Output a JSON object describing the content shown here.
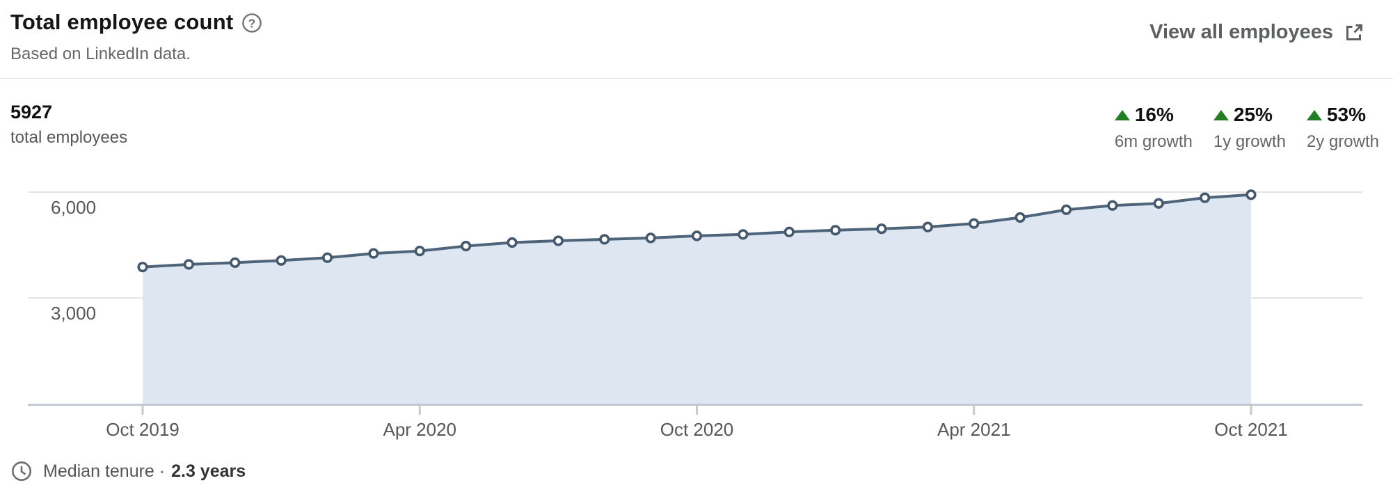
{
  "header": {
    "title": "Total employee count",
    "help_icon": "question-mark-circle-icon",
    "subtitle": "Based on LinkedIn data.",
    "view_all_label": "View all employees",
    "view_all_icon": "external-link-icon"
  },
  "stats": {
    "total_value": "5927",
    "total_label": "total employees",
    "growth_up_color": "#237d23",
    "growth": [
      {
        "direction": "up",
        "value": "16%",
        "label": "6m growth"
      },
      {
        "direction": "up",
        "value": "25%",
        "label": "1y growth"
      },
      {
        "direction": "up",
        "value": "53%",
        "label": "2y growth"
      }
    ]
  },
  "footer": {
    "icon": "clock-icon",
    "label": "Median tenure ·",
    "value": "2.3 years"
  },
  "chart_data": {
    "type": "area",
    "title": "Total employee count",
    "xlabel": "",
    "ylabel": "total employees",
    "x_tick_labels": [
      "Oct 2019",
      "Apr 2020",
      "Oct 2020",
      "Apr 2021",
      "Oct 2021"
    ],
    "x_tick_indices": [
      0,
      6,
      12,
      18,
      24
    ],
    "values": [
      3875,
      3950,
      4000,
      4060,
      4140,
      4260,
      4330,
      4470,
      4570,
      4620,
      4660,
      4700,
      4760,
      4800,
      4870,
      4920,
      4960,
      5010,
      5110,
      5280,
      5500,
      5620,
      5680,
      5840,
      5927
    ],
    "y_ticks": [
      6000,
      3000
    ],
    "y_tick_labels": [
      "6,000",
      "3,000"
    ],
    "ylim": [
      0,
      6710
    ],
    "grid": "horizontal",
    "legend": "none",
    "marker": "circle-open",
    "colors": {
      "line": "#4e647a",
      "marker": "#44586e",
      "fill": "#dee7f1",
      "grid": "#e4e4e4",
      "axis": "#c3c9d2",
      "tick": "#c9c9c9"
    }
  }
}
